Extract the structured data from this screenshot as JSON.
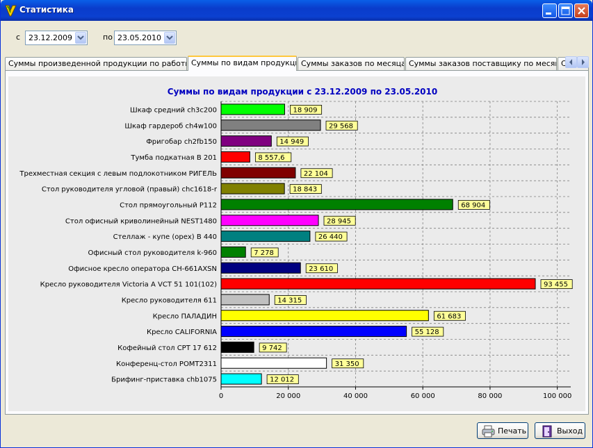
{
  "window": {
    "title": "Статистика"
  },
  "filters": {
    "from_label": "с",
    "from_value": "23.12.2009",
    "to_label": "по",
    "to_value": "23.05.2010"
  },
  "tabs": [
    {
      "label": "Суммы произведенной продукции по работникам",
      "active": false
    },
    {
      "label": "Суммы по видам продукции",
      "active": true
    },
    {
      "label": "Суммы заказов по месяцам",
      "active": false
    },
    {
      "label": "Суммы заказов поставщику по месяцам",
      "active": false
    },
    {
      "label": "С",
      "active": false
    }
  ],
  "buttons": {
    "print": "Печать",
    "exit": "Выход"
  },
  "chart_data": {
    "type": "bar",
    "orientation": "horizontal",
    "title": "Суммы по видам продукции с 23.12.2009 по 23.05.2010",
    "xlim": [
      0,
      104000
    ],
    "x_ticks": [
      0,
      20000,
      40000,
      60000,
      80000,
      100000
    ],
    "x_tick_labels": [
      "0",
      "20 000",
      "40 000",
      "60 000",
      "80 000",
      "100 000"
    ],
    "grid": true,
    "categories": [
      "Шкаф средний ch3c200",
      "Шкаф гардероб ch4w100",
      "Фригобар ch2fb150",
      "Тумба подкатная В 201",
      "Трехместная секция с левым подлокотником РИГЕЛЬ",
      "Стол руководителя угловой (правый) chc1618-r",
      "Стол прямоугольный Р112",
      "Стол офисный криволинейный NEST1480",
      "Стеллаж - купе (орех) В 440",
      "Офисный стол руководителя k-960",
      "Офисное кресло оператора CH-661AXSN",
      "Кресло руководителя Victoria A VCT 51 101(102)",
      "Кресло руководителя 611",
      "Кресло ПАЛАДИН",
      "Кресло CALIFORNIA",
      "Кофейный стол CPT 17 612",
      "Конференц-стол POMT2311",
      "Брифинг-приставка chb1075"
    ],
    "values": [
      18909,
      29568,
      14949,
      8557.6,
      22104,
      18843,
      68904,
      28945,
      26440,
      7278,
      23610,
      93455,
      14315,
      61683,
      55128,
      9742,
      31350,
      12012
    ],
    "value_labels": [
      "18 909",
      "29 568",
      "14 949",
      "8 557,6",
      "22 104",
      "18 843",
      "68 904",
      "28 945",
      "26 440",
      "7 278",
      "23 610",
      "93 455",
      "14 315",
      "61 683",
      "55 128",
      "9 742",
      "31 350",
      "12 012"
    ],
    "colors": [
      "#00FF00",
      "#808080",
      "#800080",
      "#FF0000",
      "#800000",
      "#808000",
      "#008000",
      "#FF00FF",
      "#008080",
      "#008000",
      "#000080",
      "#FF0000",
      "#C0C0C0",
      "#FFFF00",
      "#0000FF",
      "#000000",
      "#FFFFFF",
      "#00FFFF"
    ],
    "title_color": "#0000C0",
    "label_bg": "#FFFF99"
  }
}
